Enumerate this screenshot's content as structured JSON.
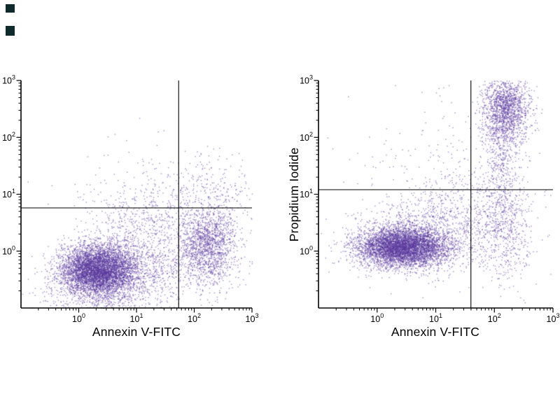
{
  "figure": {
    "background": "#ffffff",
    "description": "Two flow cytometry dot plots with quadrant gates"
  },
  "corner_markers": [
    {
      "x": 8,
      "y": 6,
      "w": 13,
      "h": 12,
      "color": "#0e2a2a"
    },
    {
      "x": 8,
      "y": 37,
      "w": 13,
      "h": 14,
      "color": "#0e2a2a"
    }
  ],
  "chart_data": [
    {
      "type": "scatter",
      "title": "",
      "xlabel": "Annexin V-FITC",
      "ylabel": "",
      "x_scale": "log",
      "y_scale": "log",
      "xlim_log10": [
        -1,
        3
      ],
      "ylim_log10": [
        -1,
        3
      ],
      "x_tick_exponents": [
        0,
        1,
        2,
        3
      ],
      "y_tick_exponents": [
        0,
        1,
        2,
        3
      ],
      "grid": false,
      "legend": "none",
      "point_color": "#5a389e",
      "quadrant_gate": {
        "x_log10": 1.73,
        "y_log10": 0.76
      },
      "seed": 7,
      "clusters": [
        {
          "name": "viable-main-population",
          "center_log10": [
            0.32,
            -0.33
          ],
          "sd_log10": [
            0.32,
            0.22
          ],
          "n": 5200
        },
        {
          "name": "bridge-tail",
          "center_log10": [
            1.15,
            -0.25
          ],
          "sd_log10": [
            0.55,
            0.3
          ],
          "n": 900
        },
        {
          "name": "annexin-positive-blob",
          "center_log10": [
            2.25,
            0.12
          ],
          "sd_log10": [
            0.25,
            0.33
          ],
          "n": 1500
        },
        {
          "name": "apoptotic-fan",
          "center_log10": [
            1.15,
            0.55
          ],
          "sd_log10": [
            0.5,
            0.35
          ],
          "n": 450
        },
        {
          "name": "upper-scatter-band",
          "center_log10": [
            2.2,
            1.1
          ],
          "sd_log10": [
            0.55,
            0.3
          ],
          "n": 260
        },
        {
          "name": "bottom-diffuse",
          "center_log10": [
            0.45,
            -0.75
          ],
          "sd_log10": [
            0.55,
            0.2
          ],
          "n": 500
        },
        {
          "name": "sparse-background",
          "center_log10": [
            1.5,
            0.3
          ],
          "sd_log10": [
            1.0,
            0.8
          ],
          "n": 250
        }
      ]
    },
    {
      "type": "scatter",
      "title": "",
      "xlabel": "Annexin V-FITC",
      "ylabel": "Propidium Iodide",
      "x_scale": "log",
      "y_scale": "log",
      "xlim_log10": [
        -1,
        3
      ],
      "ylim_log10": [
        -1,
        3
      ],
      "x_tick_exponents": [
        0,
        1,
        2,
        3
      ],
      "y_tick_exponents": [
        0,
        1,
        2,
        3
      ],
      "grid": false,
      "legend": "none",
      "point_color": "#5a389e",
      "quadrant_gate": {
        "x_log10": 1.6,
        "y_log10": 1.08
      },
      "seed": 13,
      "clusters": [
        {
          "name": "viable-main-population",
          "center_log10": [
            0.42,
            0.08
          ],
          "sd_log10": [
            0.38,
            0.17
          ],
          "n": 5200
        },
        {
          "name": "main-halo",
          "center_log10": [
            0.8,
            0.3
          ],
          "sd_log10": [
            0.6,
            0.35
          ],
          "n": 900
        },
        {
          "name": "necrotic-double-positive",
          "center_log10": [
            2.18,
            2.5
          ],
          "sd_log10": [
            0.2,
            0.32
          ],
          "n": 1600
        },
        {
          "name": "vertical-streak",
          "center_log10": [
            2.1,
            1.4
          ],
          "sd_log10": [
            0.17,
            0.65
          ],
          "n": 550
        },
        {
          "name": "right-lower-tail",
          "center_log10": [
            2.2,
            0.3
          ],
          "sd_log10": [
            0.22,
            0.5
          ],
          "n": 350
        },
        {
          "name": "mid-scatter",
          "center_log10": [
            1.5,
            0.65
          ],
          "sd_log10": [
            0.55,
            0.45
          ],
          "n": 420
        },
        {
          "name": "sparse-background",
          "center_log10": [
            1.3,
            1.5
          ],
          "sd_log10": [
            0.9,
            0.8
          ],
          "n": 220
        }
      ]
    }
  ]
}
